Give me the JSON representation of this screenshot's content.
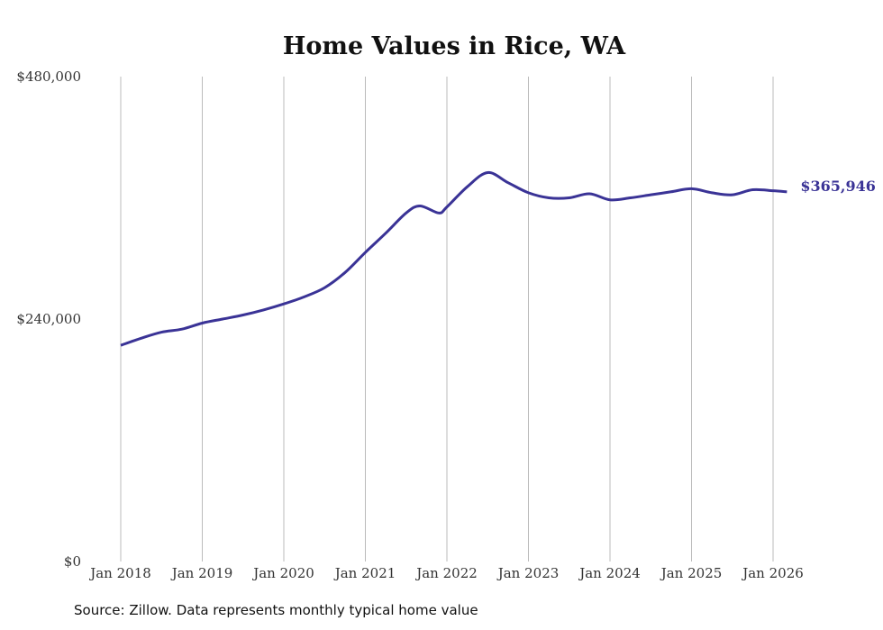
{
  "chart_data": {
    "type": "line",
    "title": "Home Values in Rice, WA",
    "xlabel": "",
    "ylabel": "",
    "ylim": [
      0,
      480000
    ],
    "xlim": [
      2018,
      2026.17
    ],
    "y_ticks": [
      0,
      240000,
      480000
    ],
    "y_tick_labels": [
      "$0",
      "$240,000",
      "$480,000"
    ],
    "x_ticks": [
      2018,
      2019,
      2020,
      2021,
      2022,
      2023,
      2024,
      2025,
      2026
    ],
    "x_tick_labels": [
      "Jan 2018",
      "Jan 2019",
      "Jan 2020",
      "Jan 2021",
      "Jan 2022",
      "Jan 2023",
      "Jan 2024",
      "Jan 2025",
      "Jan 2026"
    ],
    "grid": "vertical",
    "series": [
      {
        "name": "Typical home value",
        "color": "#3a3396",
        "x": [
          2018,
          2018.25,
          2018.5,
          2018.75,
          2019,
          2019.25,
          2019.5,
          2019.75,
          2020,
          2020.25,
          2020.5,
          2020.75,
          2021,
          2021.25,
          2021.5,
          2021.67,
          2021.9,
          2022,
          2022.25,
          2022.5,
          2022.75,
          2023,
          2023.25,
          2023.5,
          2023.75,
          2024,
          2024.25,
          2024.5,
          2024.75,
          2025,
          2025.25,
          2025.5,
          2025.75,
          2026,
          2026.17
        ],
        "values": [
          214000,
          221000,
          227000,
          230000,
          236000,
          240000,
          244000,
          249000,
          255000,
          262000,
          271000,
          286000,
          306000,
          325000,
          345000,
          352000,
          345000,
          351000,
          371000,
          385000,
          375000,
          365000,
          360000,
          360000,
          364000,
          358000,
          360000,
          363000,
          366000,
          369000,
          365000,
          363000,
          368000,
          367000,
          365946
        ]
      }
    ],
    "end_label": "$365,946",
    "source": "Source: Zillow. Data represents monthly typical home value"
  }
}
